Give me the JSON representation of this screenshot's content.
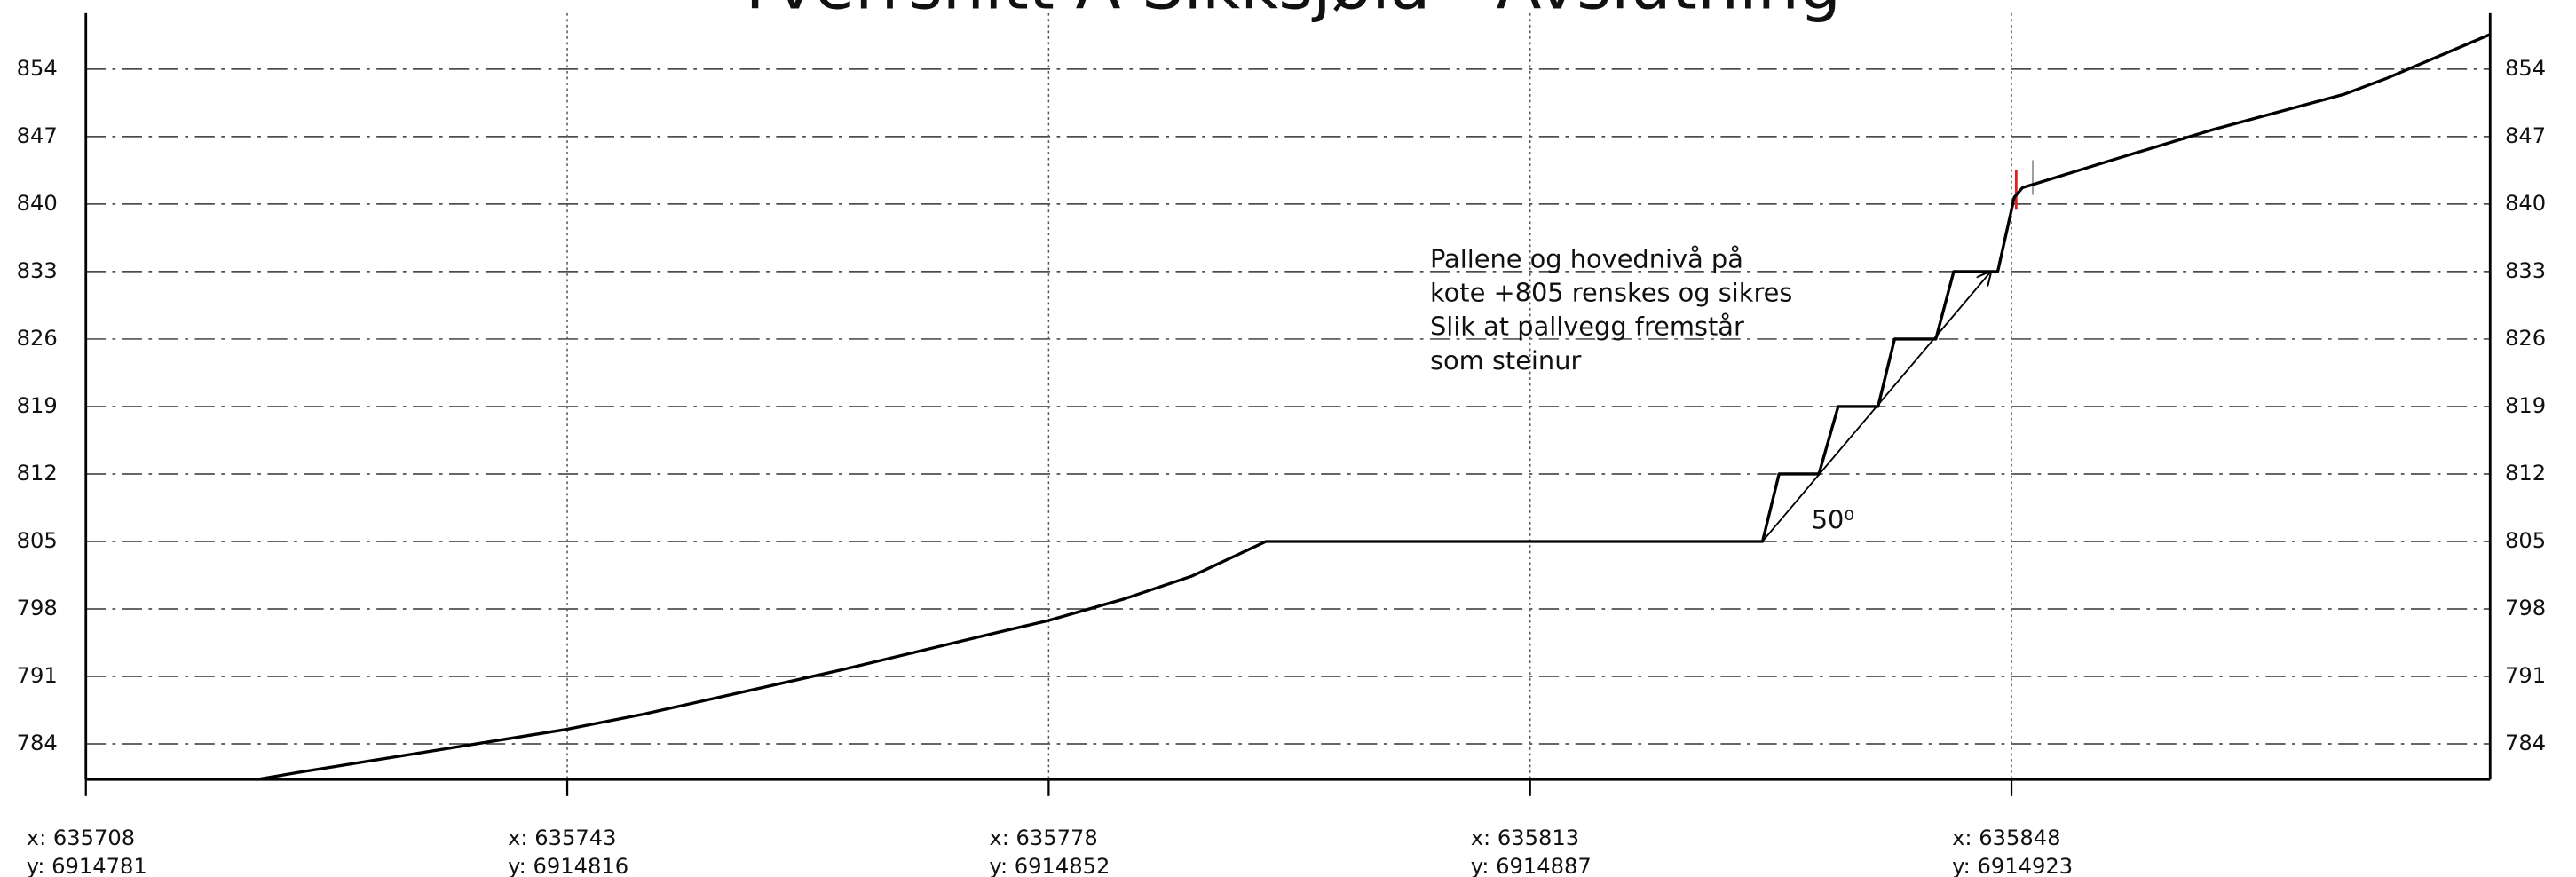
{
  "chart_data": {
    "type": "line",
    "title": "Tverrsnitt A Sikksjøla - Avslutning",
    "xlim": [
      0,
      174.8
    ],
    "ylim": [
      780.3,
      859.8
    ],
    "xticks": [
      {
        "value": 0,
        "label": [
          "x: 635708",
          "y: 6914781"
        ]
      },
      {
        "value": 35,
        "label": [
          "x: 635743",
          "y: 6914816"
        ]
      },
      {
        "value": 70,
        "label": [
          "x: 635778",
          "y: 6914852"
        ]
      },
      {
        "value": 105,
        "label": [
          "x: 635813",
          "y: 6914887"
        ]
      },
      {
        "value": 140,
        "label": [
          "x: 635848",
          "y: 6914923"
        ]
      }
    ],
    "yticks": [
      784,
      791,
      798,
      805,
      812,
      819,
      826,
      833,
      840,
      847,
      854
    ],
    "grid": true,
    "series": [
      {
        "color": "#000000",
        "x": [
          12.4,
          15.7,
          34.9,
          40.6,
          55.0,
          65.8,
          70.0,
          75.4,
          80.4,
          85.8,
          121.9,
          123.1,
          126.0,
          127.4,
          130.3,
          131.5,
          134.5,
          135.8,
          139.0,
          140.2,
          140.8,
          147.4,
          154.6,
          164.2,
          167.2,
          174.8
        ],
        "values": [
          780.3,
          781.1,
          785.5,
          787.1,
          791.7,
          795.4,
          796.8,
          799.0,
          801.4,
          805,
          805,
          812,
          812,
          819,
          819,
          826,
          826,
          833,
          833,
          840.7,
          841.7,
          844.6,
          847.7,
          851.4,
          853,
          857.6
        ]
      }
    ],
    "annotation_lines": [
      "Pallene og hovednivå på",
      "kote +805 renskes og sikres",
      "Slik at pallvegg fremstår",
      "som steinur"
    ],
    "angle_label": "50⁰"
  }
}
